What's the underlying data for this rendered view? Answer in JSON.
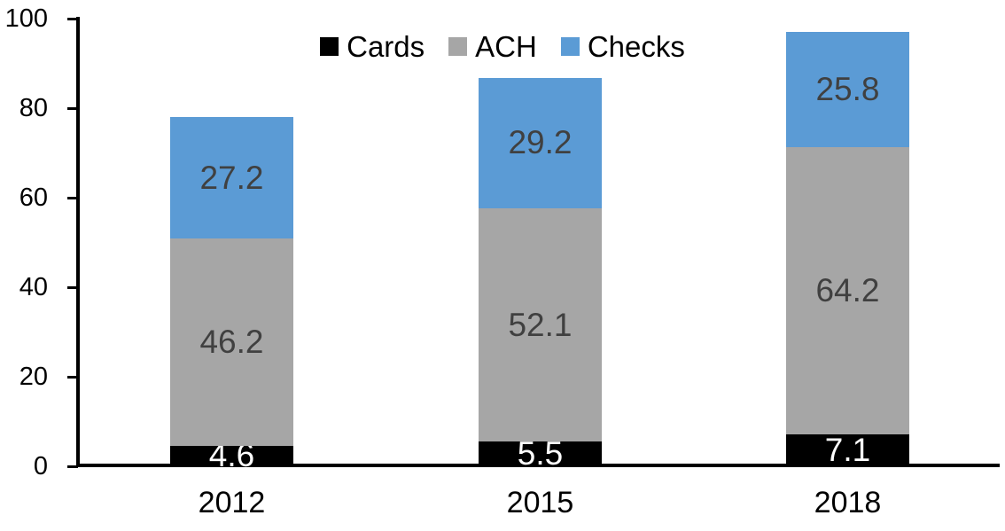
{
  "chart_data": {
    "type": "bar",
    "stacked": true,
    "title": "",
    "categories": [
      "2012",
      "2015",
      "2018"
    ],
    "series": [
      {
        "name": "Cards",
        "color": "#000000",
        "label_color": "#FFFFFF",
        "values": [
          4.6,
          5.5,
          7.1
        ]
      },
      {
        "name": "ACH",
        "color": "#A6A6A6",
        "label_color": "#404040",
        "values": [
          46.2,
          52.1,
          64.2
        ]
      },
      {
        "name": "Checks",
        "color": "#5B9BD5",
        "label_color": "#404040",
        "values": [
          27.2,
          29.2,
          25.8
        ]
      }
    ],
    "totals": [
      78.0,
      86.8,
      97.1
    ],
    "ylim": [
      0,
      100
    ],
    "yticks": [
      "0",
      "20",
      "40",
      "60",
      "80",
      "100"
    ],
    "grid": false,
    "legend_position": "top-center",
    "axis_color": "#000000",
    "background_color": "#FFFFFF"
  }
}
